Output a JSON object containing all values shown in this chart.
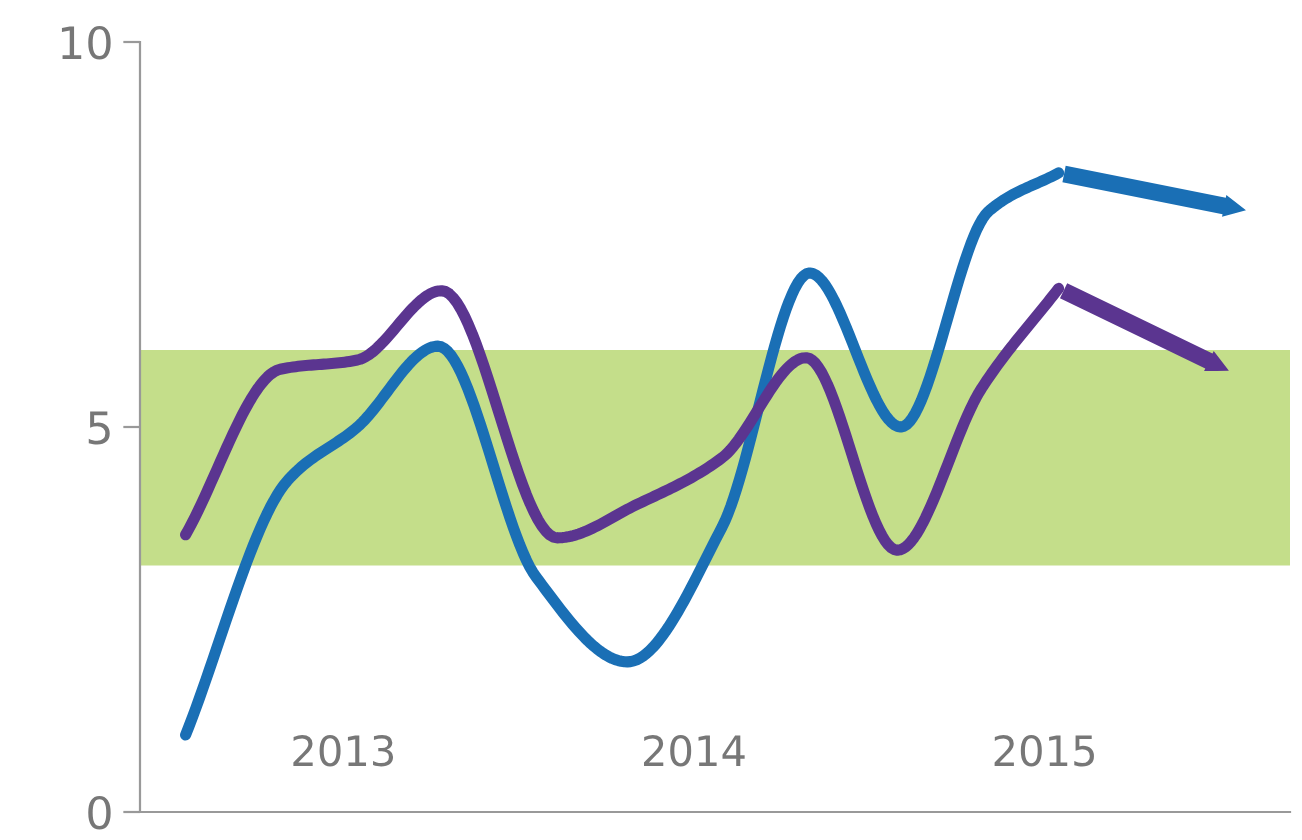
{
  "chart_data": {
    "type": "line",
    "series": [
      {
        "color": "#1a6fb5",
        "x": [
          2012.55,
          2012.84,
          2013.04,
          2013.27,
          2013.55,
          2013.81,
          2014.08,
          2014.33,
          2014.59,
          2014.84,
          2015.04
        ],
        "values": [
          1.0,
          4.3,
          5.0,
          6.05,
          3.05,
          1.95,
          3.7,
          7.0,
          5.0,
          7.8,
          8.3
        ]
      },
      {
        "color": "#5b3590",
        "x": [
          2012.55,
          2012.82,
          2013.04,
          2013.28,
          2013.61,
          2013.84,
          2014.08,
          2014.32,
          2014.58,
          2014.82,
          2015.04
        ],
        "values": [
          3.6,
          5.75,
          5.87,
          6.77,
          3.56,
          4.0,
          4.6,
          5.9,
          3.4,
          5.5,
          6.8
        ]
      }
    ],
    "xlim": [
      2012.42,
      2015.7
    ],
    "xticks": [
      2013,
      2014,
      2015
    ],
    "ylim": [
      0,
      10
    ],
    "yticks": [
      0,
      5,
      10
    ],
    "bands": [
      {
        "axis": "y",
        "from": 3.2,
        "to": 6.0,
        "color": "#9dc83c"
      }
    ],
    "grid": false,
    "line_style": "solid",
    "marker": "none"
  }
}
